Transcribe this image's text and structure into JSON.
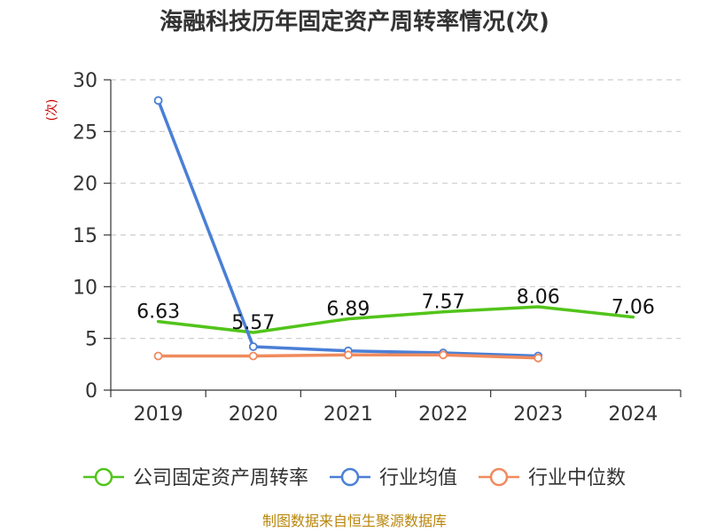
{
  "chart_data": {
    "type": "line",
    "title": "海融科技历年固定资产周转率情况(次)",
    "ylabel": "(次)",
    "xlabel": "",
    "ylim": [
      0,
      30
    ],
    "yticks": [
      0,
      5,
      10,
      15,
      20,
      25,
      30
    ],
    "categories": [
      "2019",
      "2020",
      "2021",
      "2022",
      "2023",
      "2024"
    ],
    "grid": true,
    "legend_position": "bottom",
    "series": [
      {
        "name": "公司固定资产周转率",
        "color": "#52c41a",
        "values": [
          6.63,
          5.57,
          6.89,
          7.57,
          8.06,
          7.06
        ],
        "labels": [
          "6.63",
          "5.57",
          "6.89",
          "7.57",
          "8.06",
          "7.06"
        ],
        "show_labels": true,
        "markers": false
      },
      {
        "name": "行业均值",
        "color": "#4a7fd6",
        "values": [
          28.0,
          4.2,
          3.8,
          3.6,
          3.3,
          null
        ],
        "show_labels": false,
        "markers": true
      },
      {
        "name": "行业中位数",
        "color": "#f08a5d",
        "values": [
          3.3,
          3.3,
          3.4,
          3.4,
          3.1,
          null
        ],
        "show_labels": false,
        "markers": true
      }
    ],
    "source": "制图数据来自恒生聚源数据库"
  }
}
